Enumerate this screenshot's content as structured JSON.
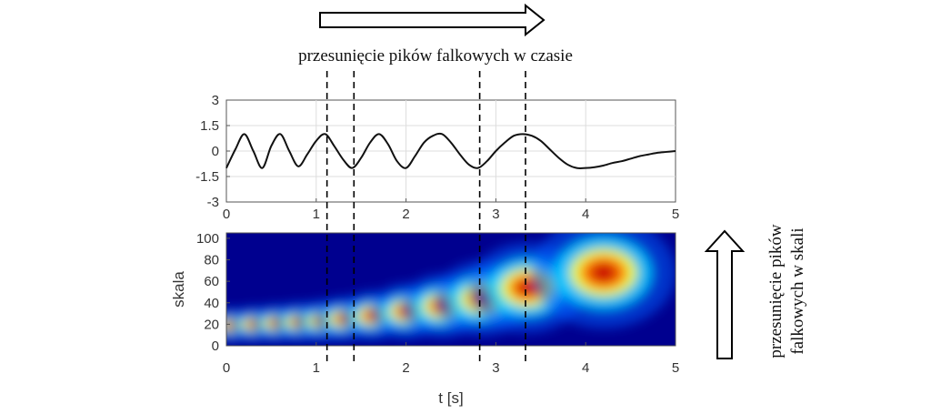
{
  "annotations": {
    "time_shift_label": "przesunięcie pików falkowych w czasie",
    "scale_shift_label_line1": "przesunięcie pików",
    "scale_shift_label_line2": "falkowych w skali",
    "marker_times": [
      1.12,
      1.42,
      2.82,
      3.33
    ]
  },
  "chart_data": [
    {
      "type": "line",
      "title": "",
      "xlabel": "",
      "ylabel": "",
      "xlim": [
        0,
        5
      ],
      "ylim": [
        -3,
        3
      ],
      "xticks": [
        "0",
        "1",
        "2",
        "3",
        "4",
        "5"
      ],
      "yticks": [
        "3",
        "1.5",
        "0",
        "-1.5",
        "-3"
      ],
      "grid": true,
      "series": [
        {
          "x": [
            0,
            0.1,
            0.2,
            0.3,
            0.4,
            0.5,
            0.6,
            0.7,
            0.8,
            0.9,
            1.0,
            1.1,
            1.2,
            1.3,
            1.4,
            1.5,
            1.6,
            1.7,
            1.8,
            1.9,
            2.0,
            2.1,
            2.2,
            2.3,
            2.4,
            2.5,
            2.6,
            2.7,
            2.8,
            2.9,
            3.0,
            3.1,
            3.2,
            3.3,
            3.4,
            3.5,
            3.6,
            3.7,
            3.8,
            3.9,
            4.0,
            4.1,
            4.2,
            4.3,
            4.4,
            4.5,
            4.6,
            4.7,
            4.8,
            4.9,
            5.0
          ],
          "values": [
            -1.0,
            0.1,
            1.0,
            0.0,
            -1.0,
            0.3,
            1.0,
            0.0,
            -0.9,
            -0.2,
            0.6,
            1.0,
            0.3,
            -0.5,
            -1.0,
            -0.4,
            0.5,
            1.0,
            0.4,
            -0.6,
            -1.0,
            -0.3,
            0.5,
            0.9,
            1.0,
            0.5,
            -0.2,
            -0.8,
            -1.0,
            -0.6,
            0.0,
            0.5,
            0.9,
            1.0,
            0.9,
            0.6,
            0.1,
            -0.4,
            -0.8,
            -1.0,
            -1.0,
            -0.95,
            -0.85,
            -0.7,
            -0.6,
            -0.45,
            -0.3,
            -0.2,
            -0.1,
            -0.05,
            0.0
          ]
        }
      ]
    },
    {
      "type": "heatmap",
      "title": "",
      "xlabel": "t [s]",
      "ylabel": "skala",
      "xlim": [
        0,
        5
      ],
      "ylim": [
        0,
        105
      ],
      "xticks": [
        "0",
        "1",
        "2",
        "3",
        "4",
        "5"
      ],
      "yticks": [
        "100",
        "80",
        "60",
        "40",
        "20",
        "0"
      ],
      "colormap": "jet",
      "peaks": [
        {
          "t": 0.05,
          "scale": 19,
          "intensity": 0.85
        },
        {
          "t": 0.3,
          "scale": 20,
          "intensity": 0.85
        },
        {
          "t": 0.55,
          "scale": 21,
          "intensity": 0.86
        },
        {
          "t": 0.8,
          "scale": 22,
          "intensity": 0.87
        },
        {
          "t": 1.05,
          "scale": 23,
          "intensity": 0.88
        },
        {
          "t": 1.3,
          "scale": 25,
          "intensity": 0.9
        },
        {
          "t": 1.62,
          "scale": 28,
          "intensity": 0.92
        },
        {
          "t": 2.0,
          "scale": 32,
          "intensity": 0.95
        },
        {
          "t": 2.4,
          "scale": 37,
          "intensity": 1.0
        },
        {
          "t": 2.85,
          "scale": 44,
          "intensity": 1.0
        },
        {
          "t": 3.35,
          "scale": 54,
          "intensity": 0.98
        },
        {
          "t": 4.2,
          "scale": 68,
          "intensity": 0.95
        }
      ]
    }
  ]
}
